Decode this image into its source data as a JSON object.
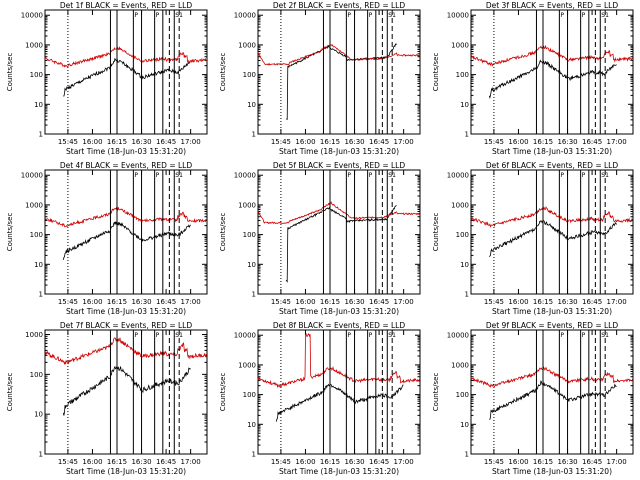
{
  "chart_data": [
    {
      "title": "Det 1f BLACK = Events, RED = LLD",
      "type": "line",
      "xlabel": "Start Time (18-Jun-03 15:31:20)",
      "ylabel": "Counts/sec",
      "x_ticks": [
        "15:45",
        "16:00",
        "16:15",
        "16:30",
        "16:45",
        "17:00"
      ],
      "y_ticks": [
        "1",
        "10",
        "100",
        "1000",
        "10000"
      ],
      "ylim": [
        1,
        15000
      ],
      "log_y": true,
      "series": [
        {
          "color": "#000000",
          "profile": "A",
          "shift": 0.0
        },
        {
          "color": "#d00000",
          "profile": "R",
          "shift": 0.0
        }
      ]
    },
    {
      "title": "Det 2f BLACK = Events, RED = LLD",
      "type": "line",
      "xlabel": "Start Time (18-Jun-03 15:31:20)",
      "ylabel": "Counts/sec",
      "x_ticks": [
        "15:45",
        "16:00",
        "16:15",
        "16:30",
        "16:45",
        "17:00"
      ],
      "y_ticks": [
        "1",
        "10",
        "100",
        "1000",
        "10000"
      ],
      "ylim": [
        1,
        15000
      ],
      "log_y": true,
      "series": [
        {
          "color": "#000000",
          "profile": "B",
          "shift": 0.0
        },
        {
          "color": "#d00000",
          "profile": "R2",
          "shift": 0.0
        }
      ]
    },
    {
      "title": "Det 3f BLACK = Events, RED = LLD",
      "type": "line",
      "xlabel": "Start Time (18-Jun-03 15:31:20)",
      "ylabel": "Counts/sec",
      "x_ticks": [
        "15:45",
        "16:00",
        "16:15",
        "16:30",
        "16:45",
        "17:00"
      ],
      "y_ticks": [
        "1",
        "10",
        "100",
        "1000",
        "10000"
      ],
      "ylim": [
        1,
        15000
      ],
      "log_y": true,
      "series": [
        {
          "color": "#000000",
          "profile": "A",
          "shift": -0.05
        },
        {
          "color": "#d00000",
          "profile": "R",
          "shift": 0.05
        }
      ]
    },
    {
      "title": "Det 4f BLACK = Events, RED = LLD",
      "type": "line",
      "xlabel": "Start Time (18-Jun-03 15:31:20)",
      "ylabel": "Counts/sec",
      "x_ticks": [
        "15:45",
        "16:00",
        "16:15",
        "16:30",
        "16:45",
        "17:00"
      ],
      "y_ticks": [
        "1",
        "10",
        "100",
        "1000",
        "10000"
      ],
      "ylim": [
        1,
        15000
      ],
      "log_y": true,
      "series": [
        {
          "color": "#000000",
          "profile": "A",
          "shift": -0.1
        },
        {
          "color": "#d00000",
          "profile": "R",
          "shift": 0.0
        }
      ]
    },
    {
      "title": "Det 5f BLACK = Events, RED = LLD",
      "type": "line",
      "xlabel": "Start Time (18-Jun-03 15:31:20)",
      "ylabel": "Counts/sec",
      "x_ticks": [
        "15:45",
        "16:00",
        "16:15",
        "16:30",
        "16:45",
        "17:00"
      ],
      "y_ticks": [
        "1",
        "10",
        "100",
        "1000",
        "10000"
      ],
      "ylim": [
        1,
        15000
      ],
      "log_y": true,
      "series": [
        {
          "color": "#000000",
          "profile": "B",
          "shift": -0.05
        },
        {
          "color": "#d00000",
          "profile": "R2",
          "shift": 0.05
        }
      ]
    },
    {
      "title": "Det 6f BLACK = Events, RED = LLD",
      "type": "line",
      "xlabel": "Start Time (18-Jun-03 15:31:20)",
      "ylabel": "Counts/sec",
      "x_ticks": [
        "15:45",
        "16:00",
        "16:15",
        "16:30",
        "16:45",
        "17:00"
      ],
      "y_ticks": [
        "1",
        "10",
        "100",
        "1000",
        "10000"
      ],
      "ylim": [
        1,
        15000
      ],
      "log_y": true,
      "series": [
        {
          "color": "#000000",
          "profile": "A",
          "shift": -0.05
        },
        {
          "color": "#d00000",
          "profile": "R",
          "shift": 0.0
        }
      ]
    },
    {
      "title": "Det 7f BLACK = Events, RED = LLD",
      "type": "line",
      "xlabel": "Start Time (18-Jun-03 15:31:20)",
      "ylabel": "Counts/sec",
      "x_ticks": [
        "15:45",
        "16:00",
        "16:15",
        "16:30",
        "16:45",
        "17:00"
      ],
      "y_ticks": [
        "1",
        "10",
        "100",
        "1000"
      ],
      "ylim": [
        1,
        1300
      ],
      "log_y": true,
      "series": [
        {
          "color": "#000000",
          "profile": "A",
          "shift": -0.3
        },
        {
          "color": "#d00000",
          "profile": "R",
          "shift": 0.0
        }
      ]
    },
    {
      "title": "Det 8f BLACK = Events, RED = LLD",
      "type": "line",
      "xlabel": "Start Time (18-Jun-03 15:31:20)",
      "ylabel": "Counts/sec",
      "x_ticks": [
        "15:45",
        "16:00",
        "16:15",
        "16:30",
        "16:45",
        "17:00"
      ],
      "y_ticks": [
        "1",
        "10",
        "100",
        "1000",
        "10000"
      ],
      "ylim": [
        1,
        15000
      ],
      "log_y": true,
      "series": [
        {
          "color": "#000000",
          "profile": "A",
          "shift": -0.15
        },
        {
          "color": "#d00000",
          "profile": "R8",
          "shift": 0.0
        }
      ]
    },
    {
      "title": "Det 9f BLACK = Events, RED = LLD",
      "type": "line",
      "xlabel": "Start Time (18-Jun-03 15:31:20)",
      "ylabel": "Counts/sec",
      "x_ticks": [
        "15:45",
        "16:00",
        "16:15",
        "16:30",
        "16:45",
        "17:00"
      ],
      "y_ticks": [
        "1",
        "10",
        "100",
        "1000",
        "10000"
      ],
      "ylim": [
        1,
        15000
      ],
      "log_y": true,
      "series": [
        {
          "color": "#000000",
          "profile": "A",
          "shift": -0.1
        },
        {
          "color": "#d00000",
          "profile": "R",
          "shift": 0.0
        }
      ]
    }
  ],
  "markers": {
    "vertical_solid": [
      "16:11",
      "16:15",
      "16:25",
      "16:30",
      "16:38",
      "16:43",
      "16:50"
    ],
    "vertical_dashed": [
      "16:47",
      "16:53"
    ],
    "vertical_dotted": [
      "15:45"
    ],
    "labels": [
      "P",
      "P",
      "S1"
    ]
  }
}
